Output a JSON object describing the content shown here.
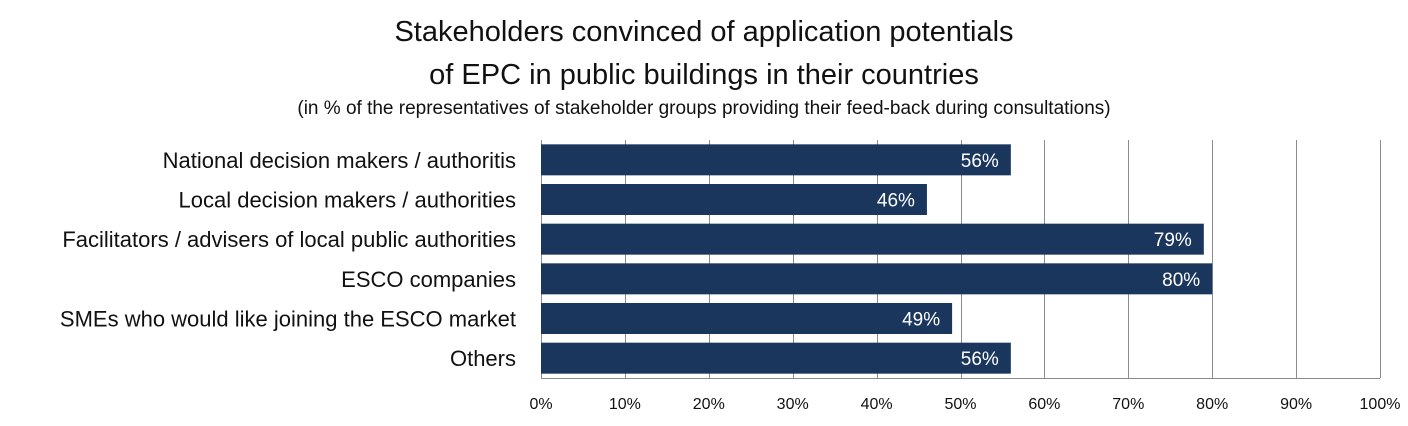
{
  "chart_data": {
    "type": "bar",
    "orientation": "horizontal",
    "title_lines": [
      "Stakeholders convinced of application potentials",
      "of EPC in public buildings in their countries"
    ],
    "subtitle": "(in % of the representatives of stakeholder groups providing their feed-back during consultations)",
    "categories": [
      "National decision makers / authoritis",
      "Local decision makers / authorities",
      "Facilitators / advisers of local public authorities",
      "ESCO companies",
      "SMEs who would like joining the ESCO market",
      "Others"
    ],
    "values": [
      56,
      46,
      79,
      80,
      49,
      56
    ],
    "data_labels": [
      "56%",
      "46%",
      "79%",
      "80%",
      "49%",
      "56%"
    ],
    "xlim": [
      0,
      100
    ],
    "x_ticks": [
      0,
      10,
      20,
      30,
      40,
      50,
      60,
      70,
      80,
      90,
      100
    ],
    "x_tick_labels": [
      "0%",
      "10%",
      "20%",
      "30%",
      "40%",
      "50%",
      "60%",
      "70%",
      "80%",
      "90%",
      "100%"
    ],
    "grid": true,
    "legend": false,
    "bar_color": "#1b365d",
    "grid_color": "#8c8c8c"
  }
}
